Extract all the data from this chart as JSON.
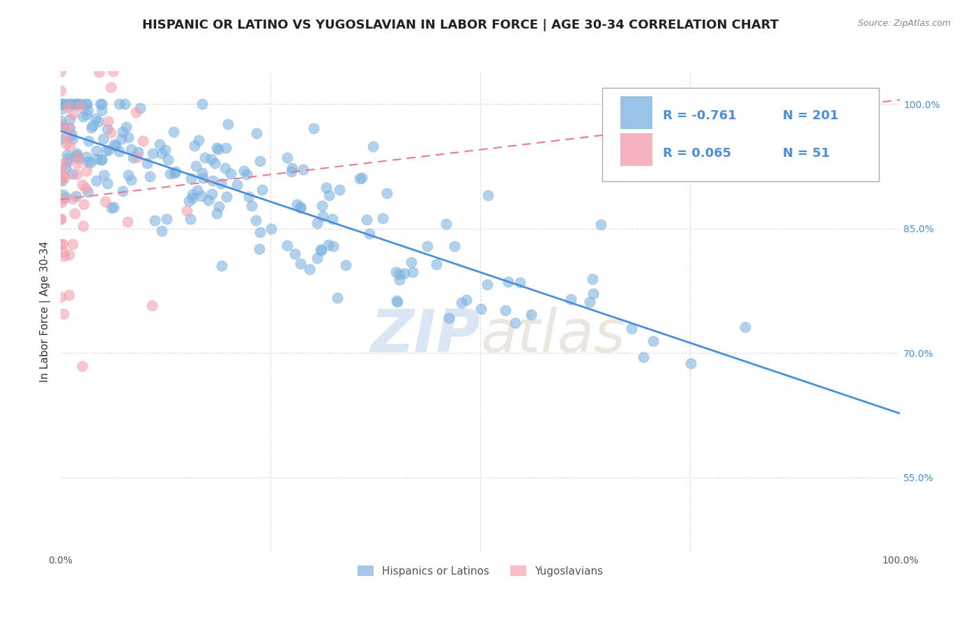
{
  "title": "HISPANIC OR LATINO VS YUGOSLAVIAN IN LABOR FORCE | AGE 30-34 CORRELATION CHART",
  "source": "Source: ZipAtlas.com",
  "xlabel": "",
  "ylabel": "In Labor Force | Age 30-34",
  "xlim": [
    0.0,
    1.0
  ],
  "ylim": [
    0.46,
    1.04
  ],
  "blue_color": "#7eb3e0",
  "pink_color": "#f4a0b0",
  "blue_line_color": "#4a90d9",
  "pink_line_color": "#e87a8f",
  "watermark_zip": "ZIP",
  "watermark_atlas": "atlas",
  "legend_r_blue": "-0.761",
  "legend_n_blue": "201",
  "legend_r_pink": "0.065",
  "legend_n_pink": "51",
  "right_yticks": [
    0.55,
    0.7,
    0.85,
    1.0
  ],
  "right_yticklabels": [
    "55.0%",
    "70.0%",
    "85.0%",
    "100.0%"
  ],
  "xticks": [
    0.0,
    0.25,
    0.5,
    0.75,
    1.0
  ],
  "xticklabels": [
    "0.0%",
    "",
    "",
    "",
    "100.0%"
  ],
  "grid_color": "#dddddd",
  "background_color": "#ffffff",
  "blue_scatter_seed": 42,
  "pink_scatter_seed": 7,
  "blue_n": 201,
  "pink_n": 51,
  "blue_R": -0.761,
  "pink_R": 0.065,
  "title_fontsize": 13,
  "axis_label_fontsize": 11,
  "tick_fontsize": 10,
  "legend_fontsize": 13,
  "pink_line_start_y": 0.885,
  "pink_line_end_y": 1.005
}
